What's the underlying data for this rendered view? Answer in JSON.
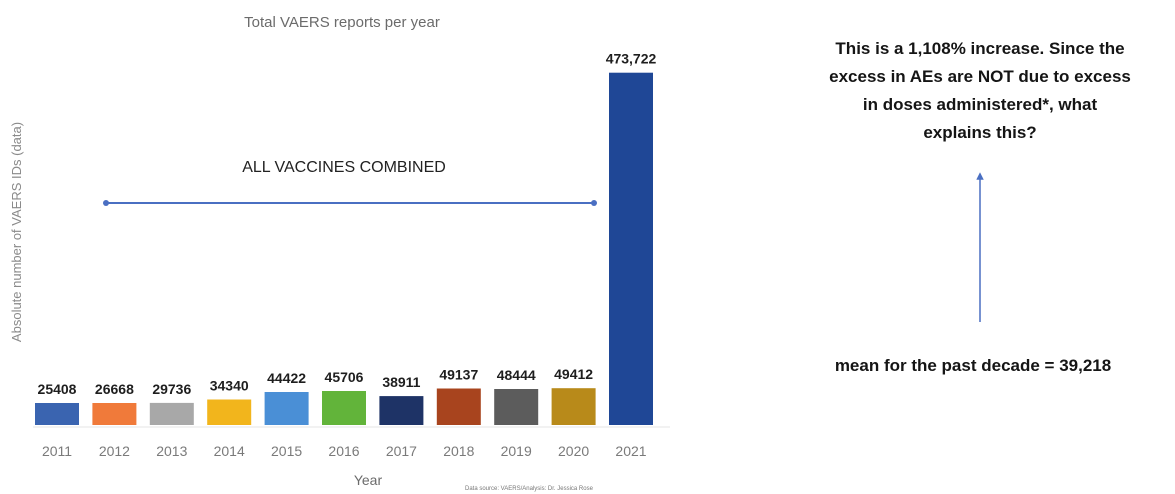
{
  "chart_data": {
    "type": "bar",
    "title": "Total VAERS reports per year",
    "xlabel": "Year",
    "ylabel": "Absolute number of VAERS IDs (data)",
    "categories": [
      "2011",
      "2012",
      "2013",
      "2014",
      "2015",
      "2016",
      "2017",
      "2018",
      "2019",
      "2020",
      "2021"
    ],
    "values": [
      25408,
      26668,
      29736,
      34340,
      44422,
      45706,
      38911,
      49137,
      48444,
      49412,
      473722
    ],
    "data_labels": [
      "25408",
      "26668",
      "29736",
      "34340",
      "44422",
      "45706",
      "38911",
      "49137",
      "48444",
      "49412",
      "473,722"
    ],
    "colors": [
      "#3a64b0",
      "#f07a3a",
      "#a8a8a8",
      "#f2b51c",
      "#4a8fd6",
      "#62b43a",
      "#1e3366",
      "#a8441e",
      "#5c5c5c",
      "#b88a1a",
      "#1f4796"
    ],
    "annotation": "ALL VACCINES COMBINED",
    "source": "Data source: VAERS/Analysis: Dr. Jessica Rose",
    "ylim": [
      0,
      480000
    ],
    "grid": false,
    "legend": "none"
  },
  "notes": {
    "increase_lines": [
      "This is a 1,108% increase. Since the",
      "excess in AEs are NOT due to excess",
      "in doses administered*, what",
      "explains this?"
    ],
    "mean_text": "mean for the past decade = 39,218"
  }
}
